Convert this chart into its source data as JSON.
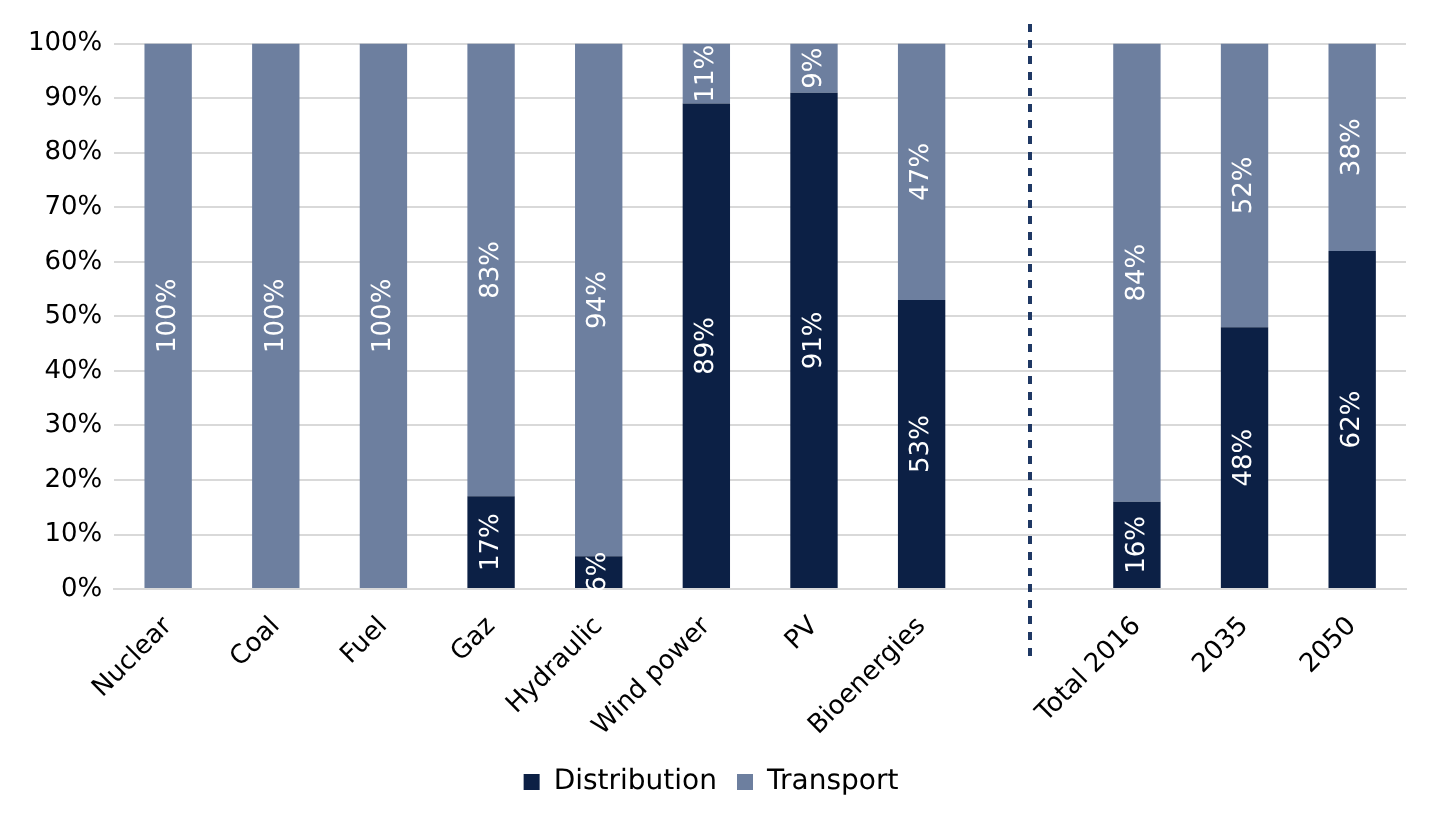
{
  "chart_data": {
    "type": "bar",
    "stacked": true,
    "categories": [
      "Nuclear",
      "Coal",
      "Fuel",
      "Gaz",
      "Hydraulic",
      "Wind power",
      "PV",
      "Bioenergies",
      null,
      "Total 2016",
      "2035",
      "2050"
    ],
    "series": [
      {
        "name": "Distribution",
        "color": "#0c2045",
        "values": [
          0,
          0,
          0,
          17,
          6,
          89,
          91,
          53,
          null,
          16,
          48,
          62
        ],
        "value_labels": [
          null,
          null,
          null,
          "17%",
          "6%",
          "89%",
          "91%",
          "53%",
          null,
          "16%",
          "48%",
          "62%"
        ]
      },
      {
        "name": "Transport",
        "color": "#6d7f9f",
        "values": [
          100,
          100,
          100,
          83,
          94,
          11,
          9,
          47,
          null,
          84,
          52,
          38
        ],
        "value_labels": [
          "100%",
          "100%",
          "100%",
          "83%",
          "94%",
          "11%",
          "9%",
          "47%",
          null,
          "84%",
          "52%",
          "38%"
        ]
      }
    ],
    "ylim": [
      0,
      100
    ],
    "yticks": [
      {
        "value": 0,
        "label": "0%"
      },
      {
        "value": 10,
        "label": "10%"
      },
      {
        "value": 20,
        "label": "20%"
      },
      {
        "value": 30,
        "label": "30%"
      },
      {
        "value": 40,
        "label": "40%"
      },
      {
        "value": 50,
        "label": "50%"
      },
      {
        "value": 60,
        "label": "60%"
      },
      {
        "value": 70,
        "label": "70%"
      },
      {
        "value": 80,
        "label": "80%"
      },
      {
        "value": 90,
        "label": "90%"
      },
      {
        "value": 100,
        "label": "100%"
      }
    ],
    "grid": "y",
    "legend": "bottom"
  }
}
